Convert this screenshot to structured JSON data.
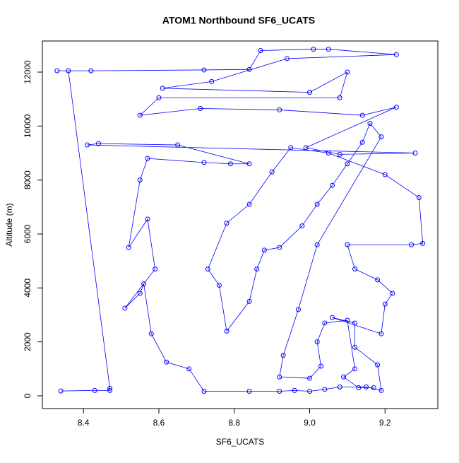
{
  "chart_data": {
    "type": "line",
    "title": "ATOM1 Northbound SF6_UCATS",
    "x_label": "SF6_UCATS",
    "y_label": "Altitude (m)",
    "color": "#0000ff",
    "markers": true,
    "xlim": [
      8.291,
      9.34
    ],
    "ylim": [
      -472,
      13153
    ],
    "xticks": [
      8.4,
      8.6,
      8.8,
      {
        "value": 9,
        "label": "9.0"
      },
      9.2
    ],
    "yticks": [
      0,
      2000,
      4000,
      6000,
      8000,
      10000,
      12000
    ],
    "x": [
      8.34,
      8.43,
      8.47,
      8.47,
      8.36,
      8.33,
      8.42,
      8.72,
      8.84,
      8.87,
      9.01,
      9.05,
      9.23,
      8.94,
      8.74,
      8.61,
      9.0,
      9.1,
      9.08,
      8.6,
      8.55,
      8.71,
      8.92,
      9.14,
      9.23,
      8.99,
      9.08,
      9.28,
      8.41,
      8.44,
      8.65,
      8.84,
      8.79,
      8.72,
      8.57,
      8.55,
      8.52,
      8.57,
      8.59,
      8.51,
      8.55,
      8.56,
      8.58,
      8.62,
      8.68,
      8.72,
      8.84,
      8.92,
      8.96,
      9.0,
      9.04,
      9.08,
      9.15,
      9.19,
      9.18,
      9.12,
      9.12,
      9.06,
      9.19,
      9.2,
      9.22,
      9.18,
      9.12,
      9.1,
      9.27,
      9.3,
      9.29,
      9.2,
      9.05,
      8.95,
      8.9,
      8.84,
      8.78,
      8.73,
      8.76,
      8.78,
      8.84,
      8.86,
      8.88,
      8.92,
      8.98,
      9.02,
      9.06,
      9.1,
      9.14,
      9.16,
      9.19,
      9.02,
      8.97,
      8.93,
      8.92,
      9.0,
      9.03,
      9.02,
      9.04,
      9.1,
      9.12,
      9.09,
      9.13,
      9.17
    ],
    "values": [
      180,
      200,
      200,
      280,
      12050,
      12050,
      12050,
      12080,
      12100,
      12800,
      12850,
      12850,
      12650,
      12500,
      11650,
      11400,
      11250,
      12000,
      11050,
      11050,
      10400,
      10650,
      10600,
      10400,
      10700,
      9200,
      8950,
      9000,
      9300,
      9350,
      9300,
      8600,
      8600,
      8650,
      8800,
      8000,
      5500,
      6550,
      4700,
      3250,
      3800,
      4150,
      2300,
      1250,
      1000,
      170,
      170,
      170,
      200,
      170,
      240,
      330,
      330,
      200,
      1150,
      1800,
      2700,
      2900,
      2300,
      3400,
      3800,
      4300,
      4700,
      5600,
      5600,
      5650,
      7350,
      8200,
      9000,
      9200,
      8300,
      7100,
      6400,
      4700,
      4100,
      2400,
      3500,
      4700,
      5400,
      5500,
      6300,
      7100,
      7800,
      8600,
      9400,
      10100,
      9600,
      5600,
      3200,
      1500,
      700,
      650,
      1100,
      2000,
      2700,
      2800,
      1000,
      700,
      300,
      300
    ]
  }
}
